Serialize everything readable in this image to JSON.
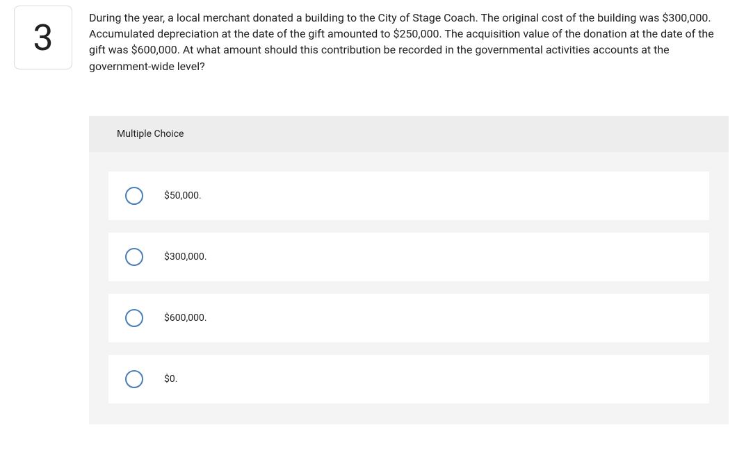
{
  "question_number": "3",
  "question_text": "During the year, a local merchant donated a building to the City of Stage Coach. The original cost of the building was $300,000. Accumulated depreciation at the date of the gift amounted to $250,000. The acquisition value of the donation at the date of the gift was $600,000. At what amount should this contribution be recorded in the governmental activities accounts at the government-wide level?",
  "section_label": "Multiple Choice",
  "options": [
    {
      "label": "$50,000."
    },
    {
      "label": "$300,000."
    },
    {
      "label": "$600,000."
    },
    {
      "label": "$0."
    }
  ],
  "colors": {
    "radio_border": "#4a7db8",
    "panel_header_bg": "#ededed",
    "panel_bg": "#f4f4f4",
    "option_bg": "#ffffff",
    "text": "#212121",
    "qbox_border": "#d9d9d9"
  }
}
